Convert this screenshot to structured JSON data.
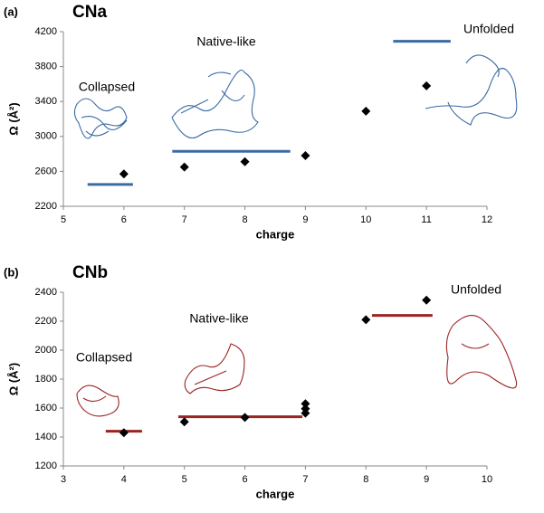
{
  "chart_data": [
    {
      "type": "scatter",
      "panel": "(a)",
      "title": "CNa",
      "x_label": "charge",
      "y_label": "Ω (Å²)",
      "x": [
        6,
        7,
        8,
        9,
        10,
        11
      ],
      "values": [
        2570,
        2650,
        2710,
        2780,
        3290,
        3580
      ],
      "color": "#000000",
      "xlim": [
        5,
        12
      ],
      "xticks": [
        5,
        6,
        7,
        8,
        9,
        10,
        11,
        12
      ],
      "ylim": [
        2200,
        4200
      ],
      "yticks": [
        2200,
        2600,
        3000,
        3400,
        3800,
        4200
      ],
      "line_color": "#3b6ba5",
      "levels": [
        {
          "label": "Collapsed",
          "value": 2450,
          "x": [
            5.4,
            6.15
          ]
        },
        {
          "label": "Native-like",
          "value": 2830,
          "x": [
            6.8,
            8.75
          ]
        },
        {
          "label": "Unfolded",
          "value": 4090,
          "x": [
            10.45,
            11.4
          ]
        }
      ]
    },
    {
      "type": "scatter",
      "panel": "(b)",
      "title": "CNb",
      "x_label": "charge",
      "y_label": "Ω (Å²)",
      "x": [
        4,
        5,
        6,
        7,
        7,
        7,
        8,
        9
      ],
      "values": [
        1430,
        1505,
        1535,
        1565,
        1595,
        1630,
        2210,
        2345
      ],
      "color": "#000000",
      "xlim": [
        3,
        10
      ],
      "xticks": [
        3,
        4,
        5,
        6,
        7,
        8,
        9,
        10
      ],
      "ylim": [
        1200,
        2400
      ],
      "yticks": [
        1200,
        1400,
        1600,
        1800,
        2000,
        2200,
        2400
      ],
      "line_color": "#9b2423",
      "levels": [
        {
          "label": "Collapsed",
          "value": 1440,
          "x": [
            3.7,
            4.3
          ]
        },
        {
          "label": "Native-like",
          "value": 1540,
          "x": [
            4.9,
            6.95
          ]
        },
        {
          "label": "Unfolded",
          "value": 2240,
          "x": [
            8.1,
            9.1
          ]
        }
      ]
    }
  ]
}
